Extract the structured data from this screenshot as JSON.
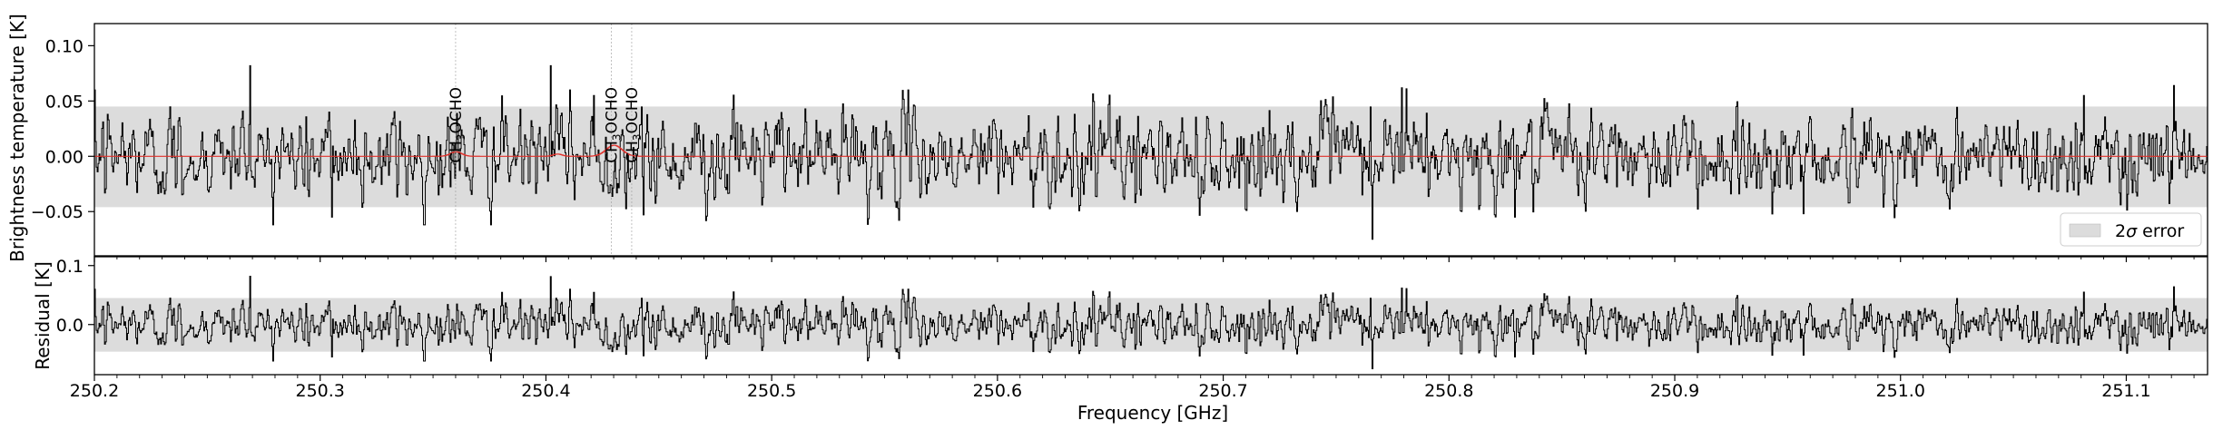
{
  "chart_data": [
    {
      "panel": "top",
      "type": "line",
      "ylabel": "Brightness temperature [K]",
      "xlim": [
        250.2,
        251.136
      ],
      "ylim": [
        -0.09,
        0.12
      ],
      "yticks": [
        {
          "value": 0.1,
          "label": "0.10"
        },
        {
          "value": 0.05,
          "label": "0.05"
        },
        {
          "value": 0.0,
          "label": "0.00"
        },
        {
          "value": -0.05,
          "label": "−0.05"
        }
      ],
      "error_band": {
        "lower": -0.046,
        "upper": 0.045,
        "color": "#dcdcdc"
      },
      "observed_series": {
        "name": "observed",
        "color": "#000000",
        "noise_std": 0.021,
        "spikes": [
          {
            "x": 250.269,
            "y": 0.082
          },
          {
            "x": 250.402,
            "y": 0.082
          },
          {
            "x": 250.421,
            "y": 0.055
          },
          {
            "x": 250.766,
            "y": -0.075
          },
          {
            "x": 250.779,
            "y": 0.062
          },
          {
            "x": 250.781,
            "y": 0.061
          },
          {
            "x": 250.957,
            "y": -0.052
          },
          {
            "x": 251.081,
            "y": 0.055
          },
          {
            "x": 251.121,
            "y": 0.064
          },
          {
            "x": 250.305,
            "y": -0.055
          },
          {
            "x": 250.443,
            "y": -0.053
          }
        ]
      },
      "model_series": {
        "name": "model",
        "color": "#e0302a",
        "baseline": 0.0,
        "peaks": [
          {
            "x": 250.36,
            "amp": 0.004,
            "width": 0.0025
          },
          {
            "x": 250.43,
            "amp": 0.01,
            "width": 0.0035
          },
          {
            "x": 250.405,
            "amp": 0.002,
            "width": 0.002
          }
        ]
      },
      "line_markers": [
        {
          "x": 250.36,
          "label_main": "CH",
          "label_sub": "3",
          "label_rest": "OCHO"
        },
        {
          "x": 250.429,
          "label_main": "CH",
          "label_sub": "3",
          "label_rest": "OCHO"
        },
        {
          "x": 250.438,
          "label_main": "CH",
          "label_sub": "3",
          "label_rest": "OCHO"
        }
      ],
      "legend": {
        "placement": "bottom-right",
        "label_sigma": "σ",
        "label_prefix": "2",
        "label_suffix": " error"
      }
    },
    {
      "panel": "bottom",
      "type": "line",
      "ylabel": "Residual [K]",
      "xlabel": "Frequency [GHz]",
      "xlim": [
        250.2,
        251.136
      ],
      "ylim": [
        -0.085,
        0.115
      ],
      "yticks": [
        {
          "value": 0.1,
          "label": "0.1"
        },
        {
          "value": 0.0,
          "label": "0.0"
        }
      ],
      "xticks": [
        {
          "value": 250.2,
          "label": "250.2"
        },
        {
          "value": 250.3,
          "label": "250.3"
        },
        {
          "value": 250.4,
          "label": "250.4"
        },
        {
          "value": 250.5,
          "label": "250.5"
        },
        {
          "value": 250.6,
          "label": "250.6"
        },
        {
          "value": 250.7,
          "label": "250.7"
        },
        {
          "value": 250.8,
          "label": "250.8"
        },
        {
          "value": 250.9,
          "label": "250.9"
        },
        {
          "value": 251.0,
          "label": "251.0"
        },
        {
          "value": 251.1,
          "label": "251.1"
        }
      ],
      "error_band": {
        "lower": -0.046,
        "upper": 0.045,
        "color": "#dcdcdc"
      },
      "residual_series": {
        "name": "residual",
        "color": "#000000",
        "noise_std": 0.021
      }
    }
  ]
}
